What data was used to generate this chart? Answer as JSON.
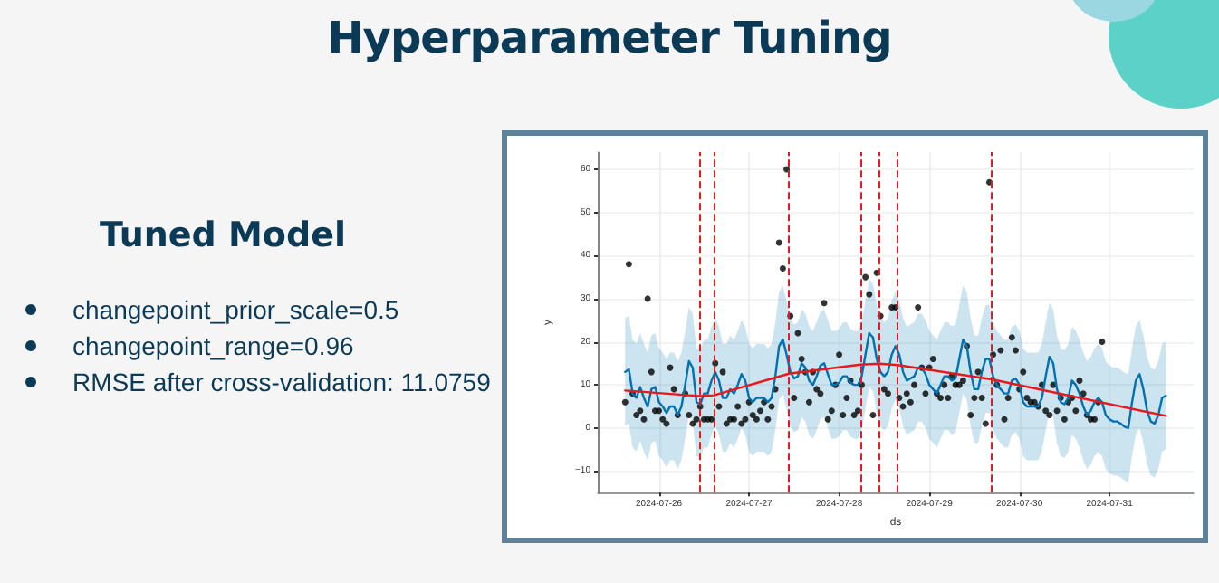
{
  "chart_data": {
    "type": "line",
    "title": "Hyperparameter Tuning",
    "annotations": [
      "Tuned Model",
      "changepoint_prior_scale=0.5",
      "changepoint_range=0.96",
      "RMSE after cross-validation: 11.0759"
    ],
    "xlabel": "ds",
    "ylabel": "y",
    "xlim": [
      "2024-07-25T07:42",
      "2024-07-31T22:24"
    ],
    "xticks": [
      "2024-07-26",
      "2024-07-27",
      "2024-07-28",
      "2024-07-29",
      "2024-07-30",
      "2024-07-31"
    ],
    "ylim": [
      -15,
      64
    ],
    "yticks": [
      {
        "value": -10,
        "label": "−10"
      },
      0,
      10,
      20,
      30,
      40,
      50,
      60
    ],
    "grid": true,
    "x": [
      "2024-07-25T15:00",
      "2024-07-25T16:00",
      "2024-07-25T17:00",
      "2024-07-25T18:00",
      "2024-07-25T19:00",
      "2024-07-25T20:00",
      "2024-07-25T21:00",
      "2024-07-25T22:00",
      "2024-07-25T23:00",
      "2024-07-26T00:00",
      "2024-07-26T01:00",
      "2024-07-26T02:00",
      "2024-07-26T03:00",
      "2024-07-26T04:00",
      "2024-07-26T05:00",
      "2024-07-26T06:00",
      "2024-07-26T07:00",
      "2024-07-26T08:00",
      "2024-07-26T09:00",
      "2024-07-26T10:00",
      "2024-07-26T11:00",
      "2024-07-26T12:00",
      "2024-07-26T13:00",
      "2024-07-26T14:00",
      "2024-07-26T15:00",
      "2024-07-26T16:00",
      "2024-07-26T17:00",
      "2024-07-26T18:00",
      "2024-07-26T19:00",
      "2024-07-26T20:00",
      "2024-07-26T21:00",
      "2024-07-26T22:00",
      "2024-07-26T23:00",
      "2024-07-27T00:00",
      "2024-07-27T01:00",
      "2024-07-27T02:00",
      "2024-07-27T03:00",
      "2024-07-27T04:00",
      "2024-07-27T05:00",
      "2024-07-27T06:00",
      "2024-07-27T07:00",
      "2024-07-27T08:00",
      "2024-07-27T09:00",
      "2024-07-27T10:00",
      "2024-07-27T11:00",
      "2024-07-27T12:00",
      "2024-07-27T13:00",
      "2024-07-27T14:00",
      "2024-07-27T15:00",
      "2024-07-27T16:00",
      "2024-07-27T17:00",
      "2024-07-27T18:00",
      "2024-07-27T19:00",
      "2024-07-27T20:00",
      "2024-07-27T21:00",
      "2024-07-27T22:00",
      "2024-07-27T23:00",
      "2024-07-28T00:00",
      "2024-07-28T01:00",
      "2024-07-28T02:00",
      "2024-07-28T03:00",
      "2024-07-28T04:00",
      "2024-07-28T05:00",
      "2024-07-28T06:00",
      "2024-07-28T07:00",
      "2024-07-28T08:00",
      "2024-07-28T09:00",
      "2024-07-28T10:00",
      "2024-07-28T11:00",
      "2024-07-28T12:00",
      "2024-07-28T13:00",
      "2024-07-28T14:00",
      "2024-07-28T15:00",
      "2024-07-28T16:00",
      "2024-07-28T17:00",
      "2024-07-28T18:00",
      "2024-07-28T19:00",
      "2024-07-28T20:00",
      "2024-07-28T21:00",
      "2024-07-28T22:00",
      "2024-07-28T23:00",
      "2024-07-29T00:00",
      "2024-07-29T01:00",
      "2024-07-29T02:00",
      "2024-07-29T03:00",
      "2024-07-29T04:00",
      "2024-07-29T05:00",
      "2024-07-29T06:00",
      "2024-07-29T07:00",
      "2024-07-29T08:00",
      "2024-07-29T09:00",
      "2024-07-29T10:00",
      "2024-07-29T11:00",
      "2024-07-29T12:00",
      "2024-07-29T13:00",
      "2024-07-29T14:00",
      "2024-07-29T15:00",
      "2024-07-29T16:00",
      "2024-07-29T17:00",
      "2024-07-29T18:00",
      "2024-07-29T19:00",
      "2024-07-29T20:00",
      "2024-07-29T21:00",
      "2024-07-29T22:00",
      "2024-07-29T23:00",
      "2024-07-30T00:00",
      "2024-07-30T01:00",
      "2024-07-30T02:00",
      "2024-07-30T03:00",
      "2024-07-30T04:00",
      "2024-07-30T05:00",
      "2024-07-30T06:00",
      "2024-07-30T07:00",
      "2024-07-30T08:00",
      "2024-07-30T09:00",
      "2024-07-30T10:00",
      "2024-07-30T11:00",
      "2024-07-30T12:00",
      "2024-07-30T13:00",
      "2024-07-30T14:00",
      "2024-07-30T15:00",
      "2024-07-30T16:00",
      "2024-07-30T17:00",
      "2024-07-30T18:00",
      "2024-07-30T19:00",
      "2024-07-30T20:00",
      "2024-07-30T21:00",
      "2024-07-30T22:00",
      "2024-07-30T23:00",
      "2024-07-31T00:00",
      "2024-07-31T01:00",
      "2024-07-31T02:00",
      "2024-07-31T03:00",
      "2024-07-31T04:00",
      "2024-07-31T05:00",
      "2024-07-31T06:00",
      "2024-07-31T07:00",
      "2024-07-31T08:00",
      "2024-07-31T09:00",
      "2024-07-31T10:00",
      "2024-07-31T11:00",
      "2024-07-31T12:00",
      "2024-07-31T13:00",
      "2024-07-31T14:00",
      "2024-07-31T15:00"
    ],
    "series": [
      {
        "type": "scatter",
        "color": "#000000",
        "marker": "circle",
        "x": [
          "2024-07-25T15:00",
          "2024-07-25T16:00",
          "2024-07-25T17:00",
          "2024-07-25T18:00",
          "2024-07-25T19:00",
          "2024-07-25T20:00",
          "2024-07-25T21:00",
          "2024-07-25T22:00",
          "2024-07-25T23:00",
          "2024-07-26T00:00",
          "2024-07-26T01:00",
          "2024-07-26T02:00",
          "2024-07-26T03:00",
          "2024-07-26T04:00",
          "2024-07-26T05:00",
          "2024-07-26T07:00",
          "2024-07-26T08:00",
          "2024-07-26T09:00",
          "2024-07-26T10:00",
          "2024-07-26T11:00",
          "2024-07-26T12:00",
          "2024-07-26T13:00",
          "2024-07-26T14:00",
          "2024-07-26T15:00",
          "2024-07-26T16:00",
          "2024-07-26T17:00",
          "2024-07-26T18:00",
          "2024-07-26T19:00",
          "2024-07-26T20:00",
          "2024-07-26T21:00",
          "2024-07-26T22:00",
          "2024-07-26T23:00",
          "2024-07-27T00:00",
          "2024-07-27T01:00",
          "2024-07-27T02:00",
          "2024-07-27T03:00",
          "2024-07-27T04:00",
          "2024-07-27T05:00",
          "2024-07-27T06:00",
          "2024-07-27T07:00",
          "2024-07-27T08:00",
          "2024-07-27T09:00",
          "2024-07-27T10:00",
          "2024-07-27T11:00",
          "2024-07-27T12:00",
          "2024-07-27T13:00",
          "2024-07-27T14:00",
          "2024-07-27T15:00",
          "2024-07-27T16:00",
          "2024-07-27T17:00",
          "2024-07-27T18:00",
          "2024-07-27T19:00",
          "2024-07-27T20:00",
          "2024-07-27T21:00",
          "2024-07-27T22:00",
          "2024-07-27T23:00",
          "2024-07-28T00:00",
          "2024-07-28T01:00",
          "2024-07-28T02:00",
          "2024-07-28T03:00",
          "2024-07-28T04:00",
          "2024-07-28T05:00",
          "2024-07-28T06:00",
          "2024-07-28T07:00",
          "2024-07-28T08:00",
          "2024-07-28T09:00",
          "2024-07-28T10:00",
          "2024-07-28T11:00",
          "2024-07-28T12:00",
          "2024-07-28T13:00",
          "2024-07-28T14:00",
          "2024-07-28T15:00",
          "2024-07-28T16:00",
          "2024-07-28T17:00",
          "2024-07-28T18:00",
          "2024-07-28T19:00",
          "2024-07-28T20:00",
          "2024-07-28T21:00",
          "2024-07-28T22:00",
          "2024-07-28T23:00",
          "2024-07-29T00:00",
          "2024-07-29T01:00",
          "2024-07-29T02:00",
          "2024-07-29T03:00",
          "2024-07-29T04:00",
          "2024-07-29T05:00",
          "2024-07-29T06:00",
          "2024-07-29T07:00",
          "2024-07-29T08:00",
          "2024-07-29T09:00",
          "2024-07-29T10:00",
          "2024-07-29T11:00",
          "2024-07-29T12:00",
          "2024-07-29T13:00",
          "2024-07-29T14:00",
          "2024-07-29T15:00",
          "2024-07-29T16:00",
          "2024-07-29T17:00",
          "2024-07-29T18:00",
          "2024-07-29T19:00",
          "2024-07-29T20:00",
          "2024-07-29T21:00",
          "2024-07-29T22:00",
          "2024-07-29T23:00",
          "2024-07-30T00:00",
          "2024-07-30T01:00",
          "2024-07-30T02:00",
          "2024-07-30T03:00",
          "2024-07-30T04:00",
          "2024-07-30T05:00",
          "2024-07-30T06:00",
          "2024-07-30T07:00",
          "2024-07-30T08:00",
          "2024-07-30T09:00",
          "2024-07-30T10:00",
          "2024-07-30T11:00",
          "2024-07-30T12:00",
          "2024-07-30T13:00",
          "2024-07-30T14:00",
          "2024-07-30T15:00",
          "2024-07-30T16:00",
          "2024-07-30T17:00",
          "2024-07-30T18:00",
          "2024-07-30T19:00",
          "2024-07-30T20:00",
          "2024-07-30T21:00",
          "2024-07-30T22:00"
        ],
        "values": [
          6,
          38,
          8,
          3,
          4,
          2,
          30,
          13,
          4,
          4,
          2,
          1,
          14,
          9,
          3,
          8,
          3,
          1,
          2,
          5,
          2,
          2,
          2,
          15,
          5,
          13,
          1,
          2,
          2,
          5,
          1,
          2,
          6,
          3,
          2,
          4,
          6,
          2,
          5,
          9,
          43,
          37,
          60,
          26,
          7,
          22,
          16,
          13,
          6,
          13,
          9,
          8,
          29,
          2,
          4,
          10,
          17,
          3,
          7,
          11,
          3,
          4,
          10,
          35,
          31,
          3,
          36,
          26,
          9,
          8,
          28,
          28,
          7,
          5,
          8,
          6,
          10,
          28,
          14,
          8,
          14,
          16,
          8,
          7,
          10,
          7,
          12,
          10,
          10,
          11,
          19,
          3,
          7,
          13,
          7,
          1,
          57,
          17,
          10,
          18,
          2,
          7,
          21,
          18,
          9,
          13,
          7,
          6,
          6,
          5,
          10,
          4,
          3,
          10,
          4,
          7,
          2,
          6,
          7,
          4,
          11,
          8,
          3,
          2,
          2,
          6,
          20
        ]
      },
      {
        "type": "line",
        "color": "#0072b2",
        "values": [
          13,
          13.6,
          8,
          7,
          9.5,
          7,
          5,
          9,
          9.5,
          6,
          5,
          3.5,
          5,
          5,
          3,
          5,
          10,
          15.5,
          14,
          6,
          5.5,
          8,
          8,
          11,
          13,
          11,
          7,
          7,
          9,
          8,
          10,
          12.5,
          11,
          7,
          6,
          7,
          7,
          7,
          6,
          7,
          12,
          19,
          20.5,
          17,
          13,
          11.5,
          12,
          15,
          14,
          11,
          10,
          12,
          14.5,
          15,
          12.5,
          10,
          10,
          10.5,
          12,
          12,
          10.5,
          10,
          10,
          12,
          17,
          22,
          21,
          16,
          13,
          12,
          13,
          17,
          19,
          17,
          13,
          11,
          11.5,
          12,
          14,
          14,
          12.5,
          10,
          9,
          8,
          10,
          12,
          12,
          11,
          11.5,
          16,
          20.5,
          19,
          13,
          9,
          9,
          13,
          16,
          16,
          12,
          10,
          9,
          8,
          8,
          11,
          11.5,
          10,
          6,
          5,
          5,
          5,
          5,
          7,
          12,
          16.5,
          15,
          9,
          6,
          5.5,
          7,
          11,
          10,
          8,
          5,
          3,
          4,
          6,
          7,
          6,
          3,
          2,
          1.5,
          1.5,
          1,
          0.3,
          0,
          6,
          11,
          12.5,
          9,
          4,
          1.5,
          1,
          3,
          7,
          7.5
        ],
        "upper": [
          25.5,
          26,
          20.5,
          19.5,
          22,
          19.5,
          17.5,
          21.5,
          22,
          18.5,
          17.5,
          16,
          17.5,
          17.5,
          15.5,
          17.5,
          22.5,
          28,
          26.5,
          18.5,
          18,
          20.5,
          20.5,
          23.5,
          25.5,
          23.5,
          19.5,
          19.5,
          21.5,
          20.5,
          22.5,
          25,
          23.5,
          19.5,
          18.5,
          19.5,
          19.5,
          19.5,
          18.5,
          19.5,
          24.5,
          31.5,
          33,
          29.5,
          25.5,
          24,
          24.5,
          27.5,
          26.5,
          23.5,
          22.5,
          24.5,
          27,
          27.5,
          25,
          22.5,
          22.5,
          23,
          24.5,
          24.5,
          23,
          22.5,
          22.5,
          24.5,
          29.5,
          34.5,
          33.5,
          28.5,
          25.5,
          24.5,
          25.5,
          29.5,
          31.5,
          29.5,
          25.5,
          23.5,
          24,
          24.5,
          26.5,
          26.5,
          25,
          22.5,
          21.5,
          20.5,
          22.5,
          24.5,
          24.5,
          23.5,
          24,
          28.5,
          33,
          31.5,
          25.5,
          21.5,
          21.5,
          25.5,
          28.5,
          28.5,
          24.5,
          22.5,
          21.5,
          20.5,
          20.5,
          23.5,
          24,
          22.5,
          18.5,
          17.5,
          17.5,
          17.5,
          17.5,
          19.5,
          24.5,
          29,
          27.5,
          21.5,
          18.5,
          18,
          19.5,
          23.5,
          22.5,
          20.5,
          17.5,
          15.5,
          16.5,
          18.5,
          19.5,
          18.5,
          15.5,
          14.5,
          14,
          14,
          13.5,
          12.8,
          12.5,
          18.5,
          23.5,
          25,
          21.5,
          16.5,
          14,
          13.5,
          15.5,
          19.5,
          20
        ],
        "lower": [
          0.5,
          1.1,
          -4.5,
          -5.5,
          -3,
          -5.5,
          -7.5,
          -3.5,
          -3,
          -6.5,
          -7.5,
          -9,
          -7.5,
          -7.5,
          -9.5,
          -7.5,
          -2.5,
          3,
          1.5,
          -6.5,
          -7,
          -4.5,
          -4.5,
          -1.5,
          0.5,
          -1.5,
          -5.5,
          -5.5,
          -3.5,
          -4.5,
          -2.5,
          0,
          -1.5,
          -5.5,
          -6.5,
          -5.5,
          -5.5,
          -5.5,
          -6.5,
          -5.5,
          -0.5,
          6.5,
          8,
          4.5,
          0.5,
          -1,
          -0.5,
          2.5,
          1.5,
          -1.5,
          -2.5,
          -0.5,
          2,
          2.5,
          0,
          -2.5,
          -2.5,
          -2,
          -0.5,
          -0.5,
          -2,
          -2.5,
          -2.5,
          -0.5,
          4.5,
          9.5,
          8.5,
          3.5,
          0.5,
          -0.5,
          0.5,
          4.5,
          6.5,
          4.5,
          0.5,
          -1.5,
          -1,
          -0.5,
          1.5,
          1.5,
          0,
          -2.5,
          -3.5,
          -4.5,
          -2.5,
          -0.5,
          -0.5,
          -1.5,
          -1,
          3.5,
          8,
          6.5,
          0.5,
          -3.5,
          -3.5,
          0.5,
          3.5,
          3.5,
          -0.5,
          -2.5,
          -3.5,
          -4.5,
          -4.5,
          -1.5,
          -1,
          -2.5,
          -6.5,
          -7.5,
          -7.5,
          -7.5,
          -7.5,
          -5.5,
          -0.5,
          4,
          2.5,
          -3.5,
          -6.5,
          -7,
          -5.5,
          -1.5,
          -2.5,
          -4.5,
          -7.5,
          -9.5,
          -8.5,
          -6.5,
          -5.5,
          -6.5,
          -9.5,
          -10.5,
          -11,
          -11,
          -11.5,
          -12.2,
          -12.5,
          -6.5,
          -1.5,
          0,
          -3.5,
          -8.5,
          -11,
          -11.5,
          -9.5,
          -5.5,
          -5
        ]
      },
      {
        "type": "line",
        "color": "#e8191c",
        "x": [
          "2024-07-25T15:00",
          "2024-07-26T10:48",
          "2024-07-26T14:40",
          "2024-07-27T10:38",
          "2024-07-28T05:38",
          "2024-07-28T10:48",
          "2024-07-28T15:38",
          "2024-07-29T16:36",
          "2024-07-31T15:00"
        ],
        "values": [
          8.7,
          7.4,
          7.6,
          12.6,
          14.7,
          14.9,
          14.6,
          11.3,
          2.8
        ]
      }
    ],
    "ref_lines": [
      {
        "axis": "x",
        "value": "2024-07-26T10:48",
        "color": "#e8191c",
        "line_style": "dashed"
      },
      {
        "axis": "x",
        "value": "2024-07-26T14:40",
        "color": "#e8191c",
        "line_style": "dashed"
      },
      {
        "axis": "x",
        "value": "2024-07-27T10:38",
        "color": "#e8191c",
        "line_style": "dashed"
      },
      {
        "axis": "x",
        "value": "2024-07-28T05:38",
        "color": "#e8191c",
        "line_style": "dashed"
      },
      {
        "axis": "x",
        "value": "2024-07-28T10:48",
        "color": "#e8191c",
        "line_style": "dashed"
      },
      {
        "axis": "x",
        "value": "2024-07-28T15:38",
        "color": "#e8191c",
        "line_style": "dashed"
      },
      {
        "axis": "x",
        "value": "2024-07-29T16:36",
        "color": "#e8191c",
        "line_style": "dashed"
      }
    ]
  }
}
